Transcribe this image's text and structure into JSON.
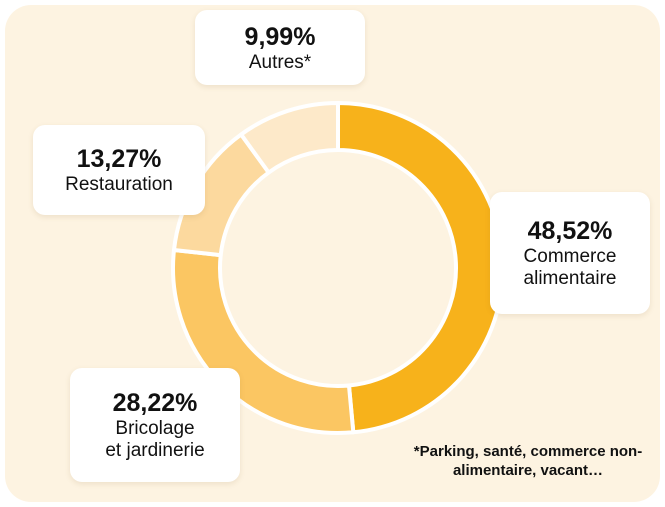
{
  "chart_data": {
    "type": "donut",
    "categories": [
      "Commerce alimentaire",
      "Bricolage et jardinerie",
      "Restauration",
      "Autres*"
    ],
    "values": [
      48.52,
      28.22,
      13.27,
      9.99
    ],
    "value_labels": [
      "48,52%",
      "28,22%",
      "13,27%",
      "9,99%"
    ],
    "colors": [
      "#f7b21b",
      "#fbc662",
      "#fcd99e",
      "#fde9c9"
    ],
    "footnote": "*Parking, santé, commerce non-alimentaire, vacant…"
  }
}
